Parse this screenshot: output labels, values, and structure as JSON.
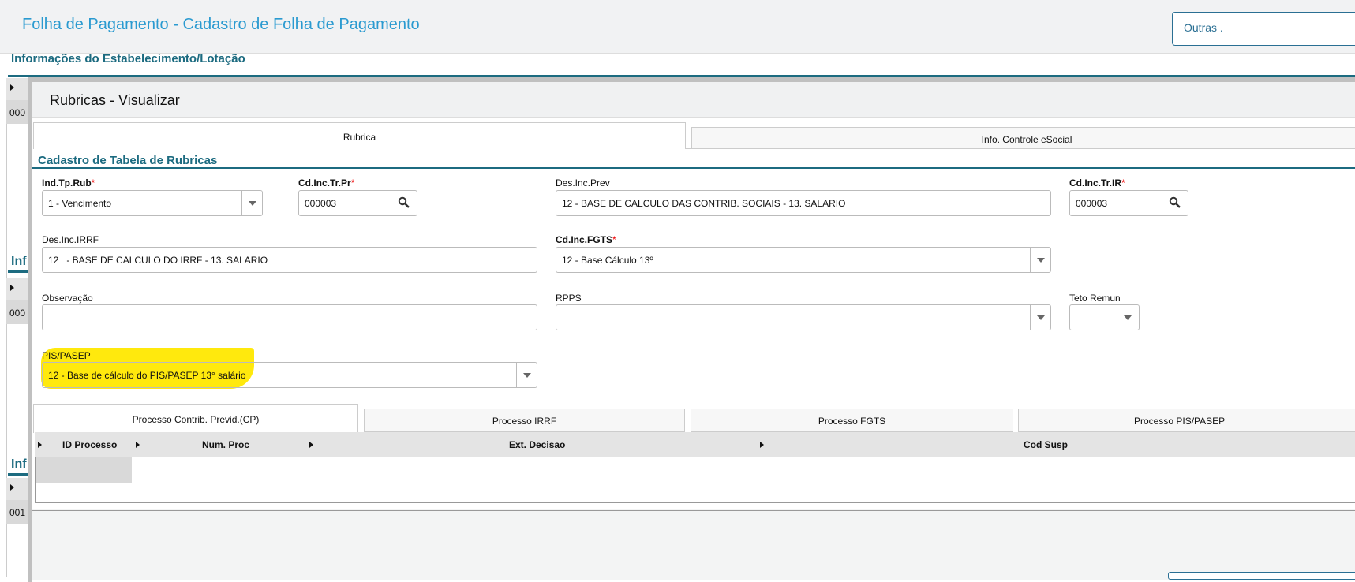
{
  "header": {
    "title": "Folha de Pagamento - Cadastro de Folha de Pagamento",
    "outras_button": "Outras ."
  },
  "background": {
    "section_title": "Informações do Estabelecimento/Lotação",
    "cells": [
      "000",
      "000",
      "001"
    ],
    "partial_sections": [
      "Inf",
      "Inf"
    ]
  },
  "modal": {
    "title": "Rubricas - Visualizar",
    "tabs": [
      {
        "label": "Rubrica",
        "active": true
      },
      {
        "label": "Info. Controle eSocial",
        "active": false
      }
    ],
    "section_title": "Cadastro de Tabela de Rubricas",
    "fields": {
      "ind_tp_rub": {
        "label": "Ind.Tp.Rub",
        "required": "*",
        "value": "1 - Vencimento"
      },
      "cd_inc_tr_pr": {
        "label": "Cd.Inc.Tr.Pr",
        "required": "*",
        "value": "000003"
      },
      "des_inc_prev": {
        "label": "Des.Inc.Prev",
        "value": "12 - BASE DE CALCULO DAS CONTRIB. SOCIAIS - 13. SALARIO"
      },
      "cd_inc_tr_ir": {
        "label": "Cd.Inc.Tr.IR",
        "required": "*",
        "value": "000003"
      },
      "des_inc_irrf": {
        "label": "Des.Inc.IRRF",
        "value": "12   - BASE DE CALCULO DO IRRF - 13. SALARIO"
      },
      "cd_inc_fgts": {
        "label": "Cd.Inc.FGTS",
        "required": "*",
        "value": "12 - Base Cálculo 13º"
      },
      "observacao": {
        "label": "Observação",
        "value": ""
      },
      "rpps": {
        "label": "RPPS",
        "value": ""
      },
      "teto_remun": {
        "label": "Teto Remun",
        "value": ""
      },
      "pis_pasep": {
        "label": "PIS/PASEP",
        "value": "12 - Base de cálculo do PIS/PASEP 13° salário"
      }
    },
    "sub_tabs": [
      {
        "label": "Processo Contrib. Previd.(CP)",
        "active": true
      },
      {
        "label": "Processo IRRF"
      },
      {
        "label": "Processo FGTS"
      },
      {
        "label": "Processo PIS/PASEP"
      }
    ],
    "grid_columns": [
      "ID Processo",
      "Num. Proc",
      "Ext. Decisao",
      "Cod Susp"
    ],
    "highlight_color": "#ffe800",
    "accent_color": "#1c6b80"
  }
}
